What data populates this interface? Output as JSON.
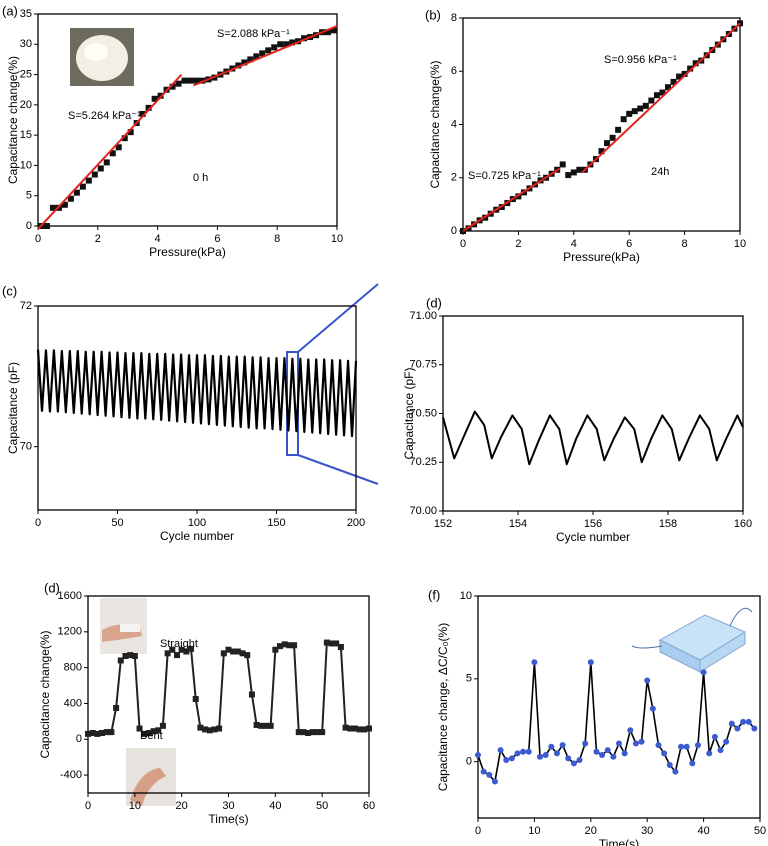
{
  "chart_data": [
    {
      "type": "scatter",
      "panel_label": "(a)",
      "xlabel": "Pressure(kPa)",
      "ylabel": "Capacitance change(%)",
      "xlim": [
        0,
        10
      ],
      "ylim": [
        0,
        35
      ],
      "xticks": [
        0,
        2,
        4,
        6,
        8,
        10
      ],
      "yticks": [
        0,
        5,
        10,
        15,
        20,
        25,
        30,
        35
      ],
      "x": [
        0.1,
        0.3,
        0.5,
        0.7,
        0.9,
        1.1,
        1.3,
        1.5,
        1.7,
        1.9,
        2.1,
        2.3,
        2.5,
        2.7,
        2.9,
        3.1,
        3.3,
        3.5,
        3.7,
        3.9,
        4.1,
        4.3,
        4.5,
        4.7,
        4.9,
        5.1,
        5.3,
        5.5,
        5.7,
        5.9,
        6.1,
        6.3,
        6.5,
        6.7,
        6.9,
        7.1,
        7.3,
        7.5,
        7.7,
        7.9,
        8.1,
        8.3,
        8.5,
        8.7,
        8.9,
        9.1,
        9.3,
        9.5,
        9.7,
        9.9
      ],
      "values": [
        0,
        0,
        3,
        3,
        3.5,
        4.5,
        5.5,
        6.5,
        7.5,
        8.5,
        9.5,
        10.5,
        12,
        13,
        14.5,
        15.5,
        17,
        18.5,
        19.5,
        21,
        21.5,
        22.5,
        23,
        23.5,
        24,
        24,
        24,
        24,
        24.2,
        24.5,
        25,
        25.5,
        26,
        26.5,
        27,
        27.5,
        28,
        28.5,
        29,
        29.5,
        30,
        30,
        30.3,
        30.5,
        31,
        31.2,
        31.5,
        32,
        32,
        32.3
      ],
      "color": "#111111",
      "marker": "square",
      "fits": [
        {
          "color": "#e0231c",
          "x": [
            0,
            4.8
          ],
          "values": [
            -0.5,
            25
          ]
        },
        {
          "color": "#e0231c",
          "x": [
            5.2,
            10
          ],
          "values": [
            23.2,
            33
          ]
        }
      ],
      "annotations": [
        "S=2.088 kPa⁻¹",
        "S=5.264 kPa⁻¹",
        "0 h"
      ]
    },
    {
      "type": "scatter",
      "panel_label": "(b)",
      "xlabel": "Pressure(kPa)",
      "ylabel": "Capacitance change(%)",
      "xlim": [
        0,
        10
      ],
      "ylim": [
        0,
        8
      ],
      "xticks": [
        0,
        2,
        4,
        6,
        8,
        10
      ],
      "yticks": [
        0,
        2,
        4,
        6,
        8
      ],
      "x": [
        0,
        0.2,
        0.4,
        0.6,
        0.8,
        1,
        1.2,
        1.4,
        1.6,
        1.8,
        2,
        2.2,
        2.4,
        2.6,
        2.8,
        3,
        3.2,
        3.4,
        3.6,
        3.8,
        4,
        4.2,
        4.4,
        4.6,
        4.8,
        5,
        5.2,
        5.4,
        5.6,
        5.8,
        6,
        6.2,
        6.4,
        6.6,
        6.8,
        7,
        7.2,
        7.4,
        7.6,
        7.8,
        8,
        8.2,
        8.4,
        8.6,
        8.8,
        9,
        9.2,
        9.4,
        9.6,
        9.8,
        10
      ],
      "values": [
        0,
        0.1,
        0.25,
        0.4,
        0.5,
        0.65,
        0.8,
        0.9,
        1.05,
        1.2,
        1.3,
        1.45,
        1.6,
        1.75,
        1.9,
        2,
        2.15,
        2.3,
        2.5,
        2.1,
        2.2,
        2.3,
        2.3,
        2.5,
        2.7,
        3,
        3.3,
        3.5,
        3.8,
        4.2,
        4.4,
        4.5,
        4.6,
        4.7,
        4.9,
        5.1,
        5.2,
        5.4,
        5.6,
        5.8,
        5.9,
        6.1,
        6.3,
        6.4,
        6.6,
        6.8,
        7,
        7.2,
        7.4,
        7.6,
        7.8
      ],
      "color": "#111111",
      "marker": "square",
      "fits": [
        {
          "color": "#e0231c",
          "x": [
            0,
            3.5
          ],
          "values": [
            0,
            2.35
          ]
        },
        {
          "color": "#e0231c",
          "x": [
            4.3,
            10
          ],
          "values": [
            2.2,
            7.8
          ]
        }
      ],
      "annotations": [
        "S=0.956 kPa⁻¹",
        "S=0.725 kPa⁻¹",
        "24h"
      ]
    },
    {
      "type": "line",
      "panel_label": "(c)",
      "xlabel": "Cycle number",
      "ylabel": "Capacitance (pF)",
      "xlim": [
        0,
        200
      ],
      "ylim": [
        69.1,
        72
      ],
      "xticks": [
        0,
        50,
        100,
        150,
        200
      ],
      "yticks": [
        70,
        72
      ],
      "x": [
        0,
        2.5,
        5,
        7.5,
        10,
        12.5,
        15,
        17.5,
        20,
        22.5,
        25,
        27.5,
        30,
        32.5,
        35,
        37.5,
        40,
        42.5,
        45,
        47.5,
        50,
        52.5,
        55,
        57.5,
        60,
        62.5,
        65,
        67.5,
        70,
        72.5,
        75,
        77.5,
        80,
        82.5,
        85,
        87.5,
        90,
        92.5,
        95,
        97.5,
        100,
        102.5,
        105,
        107.5,
        110,
        112.5,
        115,
        117.5,
        120,
        122.5,
        125,
        127.5,
        130,
        132.5,
        135,
        137.5,
        140,
        142.5,
        145,
        147.5,
        150,
        152.5,
        155,
        157.5,
        160,
        162.5,
        165,
        167.5,
        170,
        172.5,
        175,
        177.5,
        180,
        182.5,
        185,
        187.5,
        190,
        192.5,
        195,
        197.5,
        200
      ],
      "values": [
        71.38,
        70.51,
        71.37,
        70.5,
        71.37,
        70.5,
        71.36,
        70.49,
        71.36,
        70.48,
        71.36,
        70.47,
        71.35,
        70.46,
        71.35,
        70.45,
        71.35,
        70.44,
        71.34,
        70.43,
        71.34,
        70.42,
        71.33,
        70.41,
        71.33,
        70.4,
        71.33,
        70.4,
        71.32,
        70.39,
        71.32,
        70.38,
        71.32,
        70.37,
        71.31,
        70.36,
        71.31,
        70.35,
        71.3,
        70.34,
        71.3,
        70.33,
        71.3,
        70.32,
        71.29,
        70.31,
        71.29,
        70.3,
        71.28,
        70.29,
        71.28,
        70.28,
        71.28,
        70.27,
        71.27,
        70.26,
        71.27,
        70.26,
        71.26,
        70.25,
        71.26,
        70.24,
        71.26,
        70.23,
        71.25,
        70.22,
        71.25,
        70.21,
        71.24,
        70.2,
        71.24,
        70.19,
        71.24,
        70.18,
        71.23,
        70.17,
        71.23,
        70.16,
        71.22,
        70.15,
        71.22
      ],
      "color": "#000000",
      "line_width": 2.2
    },
    {
      "type": "line",
      "panel_label": "(d)",
      "xlabel": "Cycle number",
      "ylabel": "Capacitance (pF)",
      "xlim": [
        152,
        160
      ],
      "ylim": [
        70,
        71
      ],
      "xticks": [
        152,
        154,
        156,
        158,
        160
      ],
      "yticks": [
        {
          "value": 70,
          "label": "70.00"
        },
        {
          "value": 70.25,
          "label": "70.25"
        },
        {
          "value": 70.5,
          "label": "70.50"
        },
        {
          "value": 70.75,
          "label": "70.75"
        },
        {
          "value": 71,
          "label": "71.00"
        }
      ],
      "x": [
        152,
        152.3,
        152.55,
        152.85,
        153.1,
        153.3,
        153.55,
        153.85,
        154.1,
        154.3,
        154.55,
        154.85,
        155.1,
        155.3,
        155.55,
        155.85,
        156.1,
        156.3,
        156.55,
        156.85,
        157.1,
        157.3,
        157.55,
        157.85,
        158.1,
        158.3,
        158.55,
        158.85,
        159.1,
        159.3,
        159.55,
        159.85,
        160
      ],
      "values": [
        70.48,
        70.27,
        70.38,
        70.51,
        70.44,
        70.27,
        70.38,
        70.49,
        70.42,
        70.24,
        70.36,
        70.49,
        70.42,
        70.24,
        70.37,
        70.49,
        70.42,
        70.26,
        70.37,
        70.48,
        70.42,
        70.25,
        70.37,
        70.49,
        70.42,
        70.26,
        70.37,
        70.49,
        70.42,
        70.26,
        70.37,
        70.49,
        70.43
      ],
      "color": "#000000",
      "line_width": 2
    },
    {
      "type": "line",
      "panel_label": "(d)",
      "xlabel": "Time(s)",
      "ylabel": "Capacitance change(%)",
      "xlim": [
        0,
        60
      ],
      "ylim": [
        -600,
        1600
      ],
      "xticks": [
        0,
        10,
        20,
        30,
        40,
        50,
        60
      ],
      "yticks": [
        -400,
        0,
        400,
        800,
        1200,
        1600
      ],
      "x": [
        0,
        1,
        2,
        3,
        4,
        5,
        6,
        7,
        8,
        9,
        10,
        11,
        12,
        13,
        14,
        15,
        16,
        17,
        18,
        19,
        20,
        21,
        22,
        23,
        24,
        25,
        26,
        27,
        28,
        29,
        30,
        31,
        32,
        33,
        34,
        35,
        36,
        37,
        38,
        39,
        40,
        41,
        42,
        43,
        44,
        45,
        46,
        47,
        48,
        49,
        50,
        51,
        52,
        53,
        54,
        55,
        56,
        57,
        58,
        59,
        60
      ],
      "values": [
        60,
        70,
        60,
        70,
        80,
        80,
        350,
        880,
        930,
        940,
        930,
        120,
        60,
        70,
        90,
        100,
        150,
        960,
        1000,
        940,
        1000,
        980,
        1010,
        450,
        130,
        110,
        100,
        110,
        120,
        960,
        1000,
        980,
        980,
        960,
        940,
        500,
        160,
        150,
        150,
        150,
        1000,
        1040,
        1060,
        1050,
        1050,
        80,
        80,
        70,
        80,
        80,
        80,
        1080,
        1070,
        1070,
        1030,
        130,
        120,
        120,
        110,
        110,
        120
      ],
      "color": "#222222",
      "marker": "square",
      "marker_color": "#222222",
      "line_width": 2,
      "annotations": [
        "Straight",
        "Bent"
      ],
      "annotation_color": "#3b57c4"
    },
    {
      "type": "line",
      "panel_label": "(f)",
      "xlabel": "Time(s)",
      "ylabel": "Capacitance change, ΔC/C₀(%)",
      "xlim": [
        0,
        50
      ],
      "ylim": [
        -3.4,
        10
      ],
      "xticks": [
        0,
        10,
        20,
        30,
        40,
        50
      ],
      "yticks": [
        0,
        5,
        10
      ],
      "x": [
        0,
        1,
        2,
        3,
        4,
        5,
        6,
        7,
        8,
        9,
        10,
        11,
        12,
        13,
        14,
        15,
        16,
        17,
        18,
        19,
        20,
        21,
        22,
        23,
        24,
        25,
        26,
        27,
        28,
        29,
        30,
        31,
        32,
        33,
        34,
        35,
        36,
        37,
        38,
        39,
        40,
        41,
        42,
        43,
        44,
        45,
        46,
        47,
        48,
        49
      ],
      "values": [
        0.4,
        -0.6,
        -0.8,
        -1.2,
        0.7,
        0.1,
        0.2,
        0.5,
        0.6,
        0.6,
        6,
        0.3,
        0.4,
        0.9,
        0.5,
        1,
        0.2,
        -0.1,
        0.1,
        1.1,
        6,
        0.6,
        0.4,
        0.7,
        0.3,
        1.1,
        0.5,
        1.9,
        1.1,
        1.2,
        4.9,
        3.2,
        1,
        0.5,
        -0.2,
        -0.6,
        0.9,
        0.9,
        -0.1,
        1,
        5.4,
        0.5,
        1.5,
        0.7,
        1.2,
        2.3,
        2,
        2.4,
        2.4,
        2
      ],
      "color": "#000000",
      "marker": "circle",
      "marker_color": "#3d5bd1",
      "line_width": 1.6
    }
  ]
}
